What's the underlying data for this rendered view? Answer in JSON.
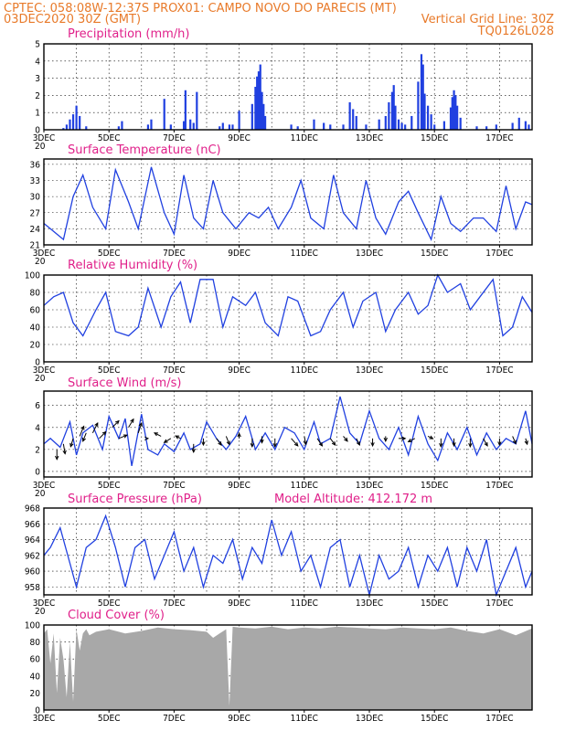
{
  "header": {
    "line1": "CPTEC:   058:08W-12:37S   PROX01: CAMPO NOVO DO PARECIS (MT)",
    "line2_left": "03DEC2020 30Z (GMT)",
    "line2_right": "Vertical Grid Line: 30Z",
    "line3_right": "TQ0126L028"
  },
  "x_axis": {
    "tick_labels": [
      "3DEC",
      "5DEC",
      "7DEC",
      "9DEC",
      "11DEC",
      "13DEC",
      "15DEC",
      "17DEC"
    ],
    "sub_label": "20",
    "range_days": [
      3.0,
      18.0
    ]
  },
  "chart_data": [
    {
      "id": "precip",
      "type": "bar",
      "title": "Precipitation (mm/h)",
      "ylim": [
        0,
        5
      ],
      "yticks": [
        0,
        1,
        2,
        3,
        4,
        5
      ],
      "color": "#2040e0",
      "x": [
        3.6,
        3.7,
        3.8,
        3.9,
        4.0,
        4.1,
        4.3,
        5.3,
        5.4,
        6.2,
        6.3,
        6.7,
        6.9,
        7.3,
        7.35,
        7.5,
        7.6,
        7.7,
        8.4,
        8.5,
        8.7,
        8.8,
        9.0,
        9.4,
        9.5,
        9.55,
        9.6,
        9.65,
        9.7,
        9.75,
        9.8,
        10.6,
        10.8,
        11.3,
        11.6,
        11.8,
        12.2,
        12.4,
        12.5,
        12.6,
        12.9,
        13.3,
        13.5,
        13.6,
        13.7,
        13.75,
        13.8,
        13.9,
        14.0,
        14.1,
        14.3,
        14.5,
        14.6,
        14.65,
        14.7,
        14.8,
        14.9,
        15.0,
        15.3,
        15.5,
        15.55,
        15.6,
        15.65,
        15.7,
        15.8,
        16.3,
        16.6,
        16.9,
        17.4,
        17.6,
        17.8,
        17.9
      ],
      "values": [
        0.1,
        0.3,
        0.6,
        0.9,
        1.4,
        0.8,
        0.2,
        0.2,
        0.5,
        0.3,
        0.6,
        1.8,
        0.3,
        0.5,
        2.3,
        0.6,
        0.4,
        2.2,
        0.2,
        0.4,
        0.3,
        0.3,
        1.1,
        1.5,
        2.5,
        3.1,
        3.4,
        3.8,
        2.2,
        1.5,
        0.8,
        0.3,
        0.2,
        0.6,
        0.4,
        0.3,
        0.3,
        1.6,
        1.2,
        0.8,
        0.3,
        0.6,
        0.8,
        1.6,
        2.2,
        2.6,
        1.4,
        0.6,
        0.4,
        0.3,
        0.8,
        2.8,
        4.4,
        3.8,
        2.1,
        1.4,
        0.9,
        0.3,
        0.5,
        1.3,
        1.9,
        2.3,
        2.0,
        1.4,
        0.7,
        0.2,
        0.2,
        0.3,
        0.4,
        0.7,
        0.5,
        0.3
      ]
    },
    {
      "id": "temp",
      "type": "line",
      "title": "Surface Temperature (nC)",
      "ylim": [
        21,
        37
      ],
      "yticks": [
        21,
        24,
        27,
        30,
        33,
        36
      ],
      "color": "#2040e0",
      "x": [
        3.0,
        3.3,
        3.6,
        3.9,
        4.2,
        4.5,
        4.9,
        5.2,
        5.6,
        5.9,
        6.3,
        6.7,
        7.0,
        7.3,
        7.6,
        7.9,
        8.2,
        8.5,
        8.9,
        9.3,
        9.6,
        9.9,
        10.2,
        10.6,
        10.9,
        11.2,
        11.6,
        11.9,
        12.2,
        12.6,
        12.9,
        13.2,
        13.5,
        13.9,
        14.2,
        14.5,
        14.9,
        15.2,
        15.5,
        15.8,
        16.2,
        16.5,
        16.9,
        17.2,
        17.5,
        17.8,
        18.0
      ],
      "values": [
        25,
        23.5,
        22,
        30,
        34,
        28,
        24,
        35,
        29,
        24,
        35.5,
        27,
        23,
        34,
        26,
        24,
        33,
        27,
        24,
        27,
        26,
        28,
        24,
        28,
        33,
        26,
        24,
        34,
        27,
        24,
        33,
        26,
        23,
        29,
        31,
        27,
        22,
        30,
        25,
        23.5,
        26,
        26,
        23.5,
        32,
        24,
        29,
        28.5
      ]
    },
    {
      "id": "rh",
      "type": "line",
      "title": "Relative Humidity (%)",
      "ylim": [
        0,
        100
      ],
      "yticks": [
        0,
        20,
        40,
        60,
        80,
        100
      ],
      "color": "#2040e0",
      "x": [
        3.0,
        3.3,
        3.6,
        3.9,
        4.2,
        4.6,
        4.9,
        5.2,
        5.6,
        5.9,
        6.2,
        6.6,
        6.9,
        7.2,
        7.5,
        7.8,
        8.2,
        8.5,
        8.8,
        9.2,
        9.5,
        9.8,
        10.2,
        10.5,
        10.8,
        11.2,
        11.5,
        11.8,
        12.2,
        12.5,
        12.8,
        13.2,
        13.5,
        13.8,
        14.2,
        14.5,
        14.8,
        15.1,
        15.4,
        15.8,
        16.1,
        16.4,
        16.8,
        17.1,
        17.4,
        17.7,
        18.0
      ],
      "values": [
        65,
        75,
        80,
        45,
        30,
        60,
        80,
        35,
        30,
        40,
        85,
        40,
        75,
        92,
        45,
        95,
        95,
        40,
        75,
        65,
        80,
        45,
        30,
        75,
        70,
        30,
        35,
        60,
        80,
        40,
        70,
        80,
        35,
        60,
        80,
        55,
        65,
        100,
        80,
        90,
        60,
        75,
        95,
        30,
        40,
        75,
        57
      ]
    },
    {
      "id": "wind",
      "type": "line",
      "title": "Surface Wind (m/s)",
      "ylim": [
        -0.5,
        7.3
      ],
      "yticks": [
        0,
        2,
        4,
        6
      ],
      "color": "#2040e0",
      "x": [
        3.0,
        3.2,
        3.5,
        3.8,
        4.0,
        4.2,
        4.5,
        4.8,
        5.0,
        5.3,
        5.5,
        5.7,
        6.0,
        6.2,
        6.5,
        6.7,
        7.0,
        7.3,
        7.5,
        7.8,
        8.0,
        8.3,
        8.6,
        8.9,
        9.2,
        9.5,
        9.8,
        10.1,
        10.4,
        10.7,
        11.0,
        11.3,
        11.5,
        11.8,
        12.1,
        12.4,
        12.7,
        13.0,
        13.3,
        13.6,
        13.9,
        14.2,
        14.5,
        14.8,
        15.1,
        15.4,
        15.7,
        16.0,
        16.3,
        16.6,
        16.9,
        17.2,
        17.5,
        17.8,
        18.0
      ],
      "values": [
        2.5,
        3.0,
        2.2,
        4.5,
        1.5,
        3.5,
        4.2,
        2.0,
        5.0,
        3.0,
        4.8,
        0.5,
        5.2,
        2.0,
        1.5,
        2.5,
        1.8,
        3.5,
        2.0,
        2.5,
        4.5,
        3.0,
        2.0,
        3.2,
        5.0,
        2.0,
        3.5,
        2.0,
        4.0,
        3.5,
        2.0,
        4.5,
        2.5,
        3.0,
        6.8,
        3.5,
        2.5,
        5.5,
        3.0,
        2.0,
        4.0,
        1.5,
        5.0,
        2.5,
        1.0,
        3.5,
        2.0,
        4.0,
        1.5,
        3.5,
        2.0,
        3.0,
        2.5,
        5.5,
        2.5
      ]
    },
    {
      "id": "pressure",
      "type": "line",
      "title": "Surface Pressure (hPa)",
      "annotation": "Model Altitude: 412.172 m",
      "ylim": [
        957,
        968
      ],
      "yticks": [
        958,
        960,
        962,
        964,
        966,
        968
      ],
      "color": "#2040e0",
      "x": [
        3.0,
        3.2,
        3.5,
        3.8,
        4.0,
        4.3,
        4.6,
        4.9,
        5.2,
        5.5,
        5.8,
        6.1,
        6.4,
        6.7,
        7.0,
        7.3,
        7.6,
        7.9,
        8.2,
        8.5,
        8.8,
        9.1,
        9.4,
        9.7,
        10.0,
        10.3,
        10.6,
        10.9,
        11.2,
        11.5,
        11.8,
        12.1,
        12.4,
        12.7,
        13.0,
        13.3,
        13.6,
        13.9,
        14.2,
        14.5,
        14.8,
        15.1,
        15.4,
        15.7,
        16.0,
        16.3,
        16.6,
        16.9,
        17.2,
        17.5,
        17.8,
        18.0
      ],
      "values": [
        962,
        963,
        965.5,
        961,
        958,
        963,
        964,
        967,
        963,
        958,
        963,
        964,
        959,
        962,
        965,
        960,
        963,
        958,
        962,
        961,
        964,
        959,
        963,
        961,
        966.5,
        962,
        965,
        960,
        962,
        958,
        963,
        964,
        958,
        962,
        957,
        962,
        959,
        960,
        963,
        958,
        962,
        960,
        963,
        958,
        963,
        960,
        964,
        957,
        960,
        963,
        958,
        960
      ]
    },
    {
      "id": "cloud",
      "type": "area",
      "title": "Cloud Cover (%)",
      "ylim": [
        0,
        100
      ],
      "yticks": [
        0,
        20,
        40,
        60,
        80,
        100
      ],
      "color": "#a8a8a8",
      "x": [
        3.0,
        3.1,
        3.2,
        3.3,
        3.4,
        3.5,
        3.6,
        3.7,
        3.8,
        3.9,
        4.0,
        4.1,
        4.2,
        4.3,
        4.4,
        4.6,
        5.0,
        5.5,
        6.0,
        6.5,
        7.0,
        7.5,
        8.0,
        8.2,
        8.4,
        8.6,
        8.7,
        8.8,
        9.0,
        9.5,
        10.0,
        10.5,
        11.0,
        11.5,
        12.0,
        12.5,
        13.0,
        13.5,
        14.0,
        14.5,
        15.0,
        15.5,
        16.0,
        16.5,
        17.0,
        17.5,
        18.0
      ],
      "values": [
        90,
        95,
        55,
        90,
        20,
        85,
        60,
        15,
        80,
        10,
        95,
        70,
        90,
        95,
        88,
        92,
        95,
        90,
        93,
        97,
        95,
        94,
        92,
        85,
        90,
        95,
        5,
        98,
        97,
        96,
        98,
        95,
        97,
        96,
        98,
        97,
        96,
        95,
        97,
        96,
        95,
        97,
        93,
        90,
        95,
        88,
        96
      ]
    }
  ],
  "wind_arrows": {
    "x": [
      3.4,
      3.6,
      3.9,
      4.1,
      4.3,
      4.5,
      4.7,
      5.1,
      5.3,
      5.6,
      5.9,
      6.2,
      6.6,
      6.9,
      7.2,
      7.6,
      7.9,
      8.3,
      8.6,
      9.0,
      9.4,
      9.7,
      10.1,
      10.6,
      11.0,
      11.4,
      11.8,
      12.2,
      12.6,
      13.1,
      13.5,
      13.9,
      14.4,
      14.8,
      15.2,
      15.6,
      16.1,
      16.5,
      17.0,
      17.4,
      17.8
    ],
    "y": [
      2.0,
      2.5,
      3.0,
      3.2,
      3.5,
      3.5,
      3.0,
      4.0,
      3.0,
      4.0,
      3.5,
      3.0,
      3.2,
      3.0,
      3.0,
      2.5,
      3.0,
      3.0,
      3.2,
      3.0,
      3.0,
      3.2,
      3.0,
      3.0,
      3.2,
      3.0,
      3.0,
      3.2,
      3.0,
      3.0,
      3.2,
      3.0,
      3.0,
      3.2,
      3.0,
      3.0,
      3.0,
      3.0,
      3.0,
      3.2,
      3.0
    ],
    "u": [
      0.0,
      0.2,
      -0.3,
      0.5,
      -0.4,
      0.6,
      0.8,
      0.8,
      1.0,
      0.6,
      0.4,
      0.0,
      -0.8,
      -0.8,
      -0.6,
      0.0,
      0.0,
      0.6,
      0.4,
      0.0,
      0.0,
      0.0,
      0.0,
      0.8,
      0.2,
      0.6,
      0.6,
      0.5,
      0.4,
      0.0,
      0.0,
      0.8,
      -0.8,
      0.6,
      0.0,
      0.0,
      0.0,
      0.5,
      0.0,
      0.4,
      0.2
    ],
    "v": [
      -1.2,
      -1.2,
      -1.0,
      1.2,
      -1.0,
      1.2,
      0.8,
      0.8,
      0.4,
      1.0,
      1.2,
      0.0,
      0.4,
      -0.5,
      0.3,
      -1.0,
      -0.8,
      -0.8,
      -1.0,
      0.6,
      -1.0,
      -0.8,
      -1.0,
      -0.9,
      -1.0,
      -0.9,
      -0.8,
      -0.6,
      -0.8,
      -0.9,
      -0.6,
      0.0,
      -0.4,
      -0.3,
      -1.0,
      -0.9,
      -1.0,
      -0.9,
      -0.8,
      -0.9,
      -0.7
    ]
  }
}
